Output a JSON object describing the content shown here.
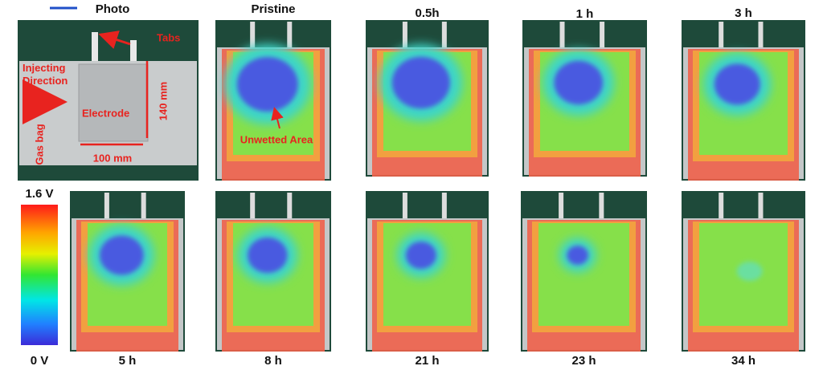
{
  "photo_panel": {
    "title": "Photo",
    "annotations": {
      "tabs": "Tabs",
      "injecting": "Injecting Direction",
      "electrode": "Electrode",
      "height": "140 mm",
      "width": "100 mm",
      "gas_bag": "Gas bag"
    }
  },
  "panels": [
    {
      "label": "Pristine",
      "annotation": "Unwetted Area"
    },
    {
      "label": "0.5h"
    },
    {
      "label": "1 h"
    },
    {
      "label": "3 h"
    },
    {
      "label": "5 h"
    },
    {
      "label": "8 h"
    },
    {
      "label": "21 h"
    },
    {
      "label": "23 h"
    },
    {
      "label": "34 h"
    }
  ],
  "colorbar": {
    "max_label": "1.6 V",
    "min_label": "0 V"
  }
}
